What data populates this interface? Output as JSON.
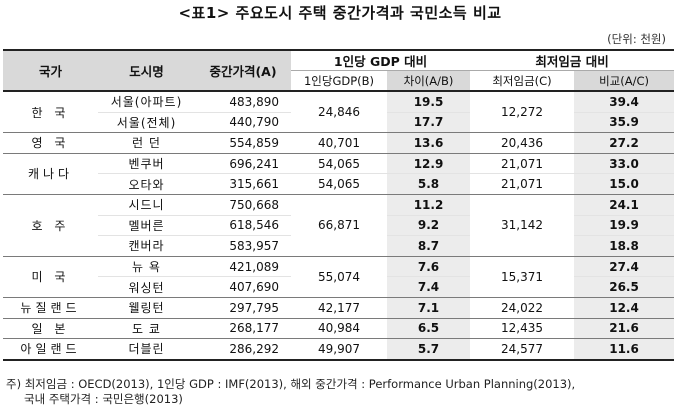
{
  "title": "<표1> 주요도시 주택 중간가격과 국민소득 비교",
  "unit": "(단위: 천원)",
  "header": {
    "country": "국가",
    "city": "도시명",
    "median_price": "중간가격(A)",
    "gdp_group": "1인당 GDP 대비",
    "gdp_sub": "1인당GDP(B)",
    "gdp_ratio": "차이(A/B)",
    "wage_group": "최저임금 대비",
    "wage_sub": "최저임금(C)",
    "wage_ratio": "비교(A/C)"
  },
  "groups": [
    {
      "country": "한 국",
      "gdp": "24,846",
      "wage": "12,272",
      "rows": [
        {
          "city": "서울(아파트)",
          "price": "483,890",
          "ab": "19.5",
          "ac": "39.4"
        },
        {
          "city": "서울(전체)",
          "price": "440,790",
          "ab": "17.7",
          "ac": "35.9"
        }
      ]
    },
    {
      "country": "영 국",
      "gdp": "40,701",
      "wage": "20,436",
      "rows": [
        {
          "city": "런 던",
          "price": "554,859",
          "ab": "13.6",
          "ac": "27.2"
        }
      ]
    },
    {
      "country": "캐나다",
      "gdp": null,
      "wage": null,
      "rows": [
        {
          "city": "벤쿠버",
          "price": "696,241",
          "gdp": "54,065",
          "ab": "12.9",
          "wage": "21,071",
          "ac": "33.0"
        },
        {
          "city": "오타와",
          "price": "315,661",
          "gdp": "54,065",
          "ab": "5.8",
          "wage": "21,071",
          "ac": "15.0"
        }
      ]
    },
    {
      "country": "호 주",
      "gdp": "66,871",
      "wage": "31,142",
      "rows": [
        {
          "city": "시드니",
          "price": "750,668",
          "ab": "11.2",
          "ac": "24.1"
        },
        {
          "city": "멜버른",
          "price": "618,546",
          "ab": "9.2",
          "ac": "19.9"
        },
        {
          "city": "캔버라",
          "price": "583,957",
          "ab": "8.7",
          "ac": "18.8"
        }
      ]
    },
    {
      "country": "미 국",
      "gdp": "55,074",
      "wage": "15,371",
      "rows": [
        {
          "city": "뉴 욕",
          "price": "421,089",
          "ab": "7.6",
          "ac": "27.4"
        },
        {
          "city": "워싱턴",
          "price": "407,690",
          "ab": "7.4",
          "ac": "26.5"
        }
      ]
    },
    {
      "country": "뉴질랜드",
      "gdp": "42,177",
      "wage": "24,022",
      "rows": [
        {
          "city": "웰링턴",
          "price": "297,795",
          "ab": "7.1",
          "ac": "12.4"
        }
      ]
    },
    {
      "country": "일 본",
      "gdp": "40,984",
      "wage": "12,435",
      "rows": [
        {
          "city": "도 쿄",
          "price": "268,177",
          "ab": "6.5",
          "ac": "21.6"
        }
      ]
    },
    {
      "country": "아일랜드",
      "gdp": "49,907",
      "wage": "24,577",
      "rows": [
        {
          "city": "더블린",
          "price": "286,292",
          "ab": "5.7",
          "ac": "11.6"
        }
      ]
    }
  ],
  "notes": [
    "주) 최저임금 : OECD(2013), 1인당 GDP : IMF(2013), 해외 중간가격 : Performance Urban Planning(2013),",
    "국내 주택가격 : 국민은행(2013)"
  ]
}
